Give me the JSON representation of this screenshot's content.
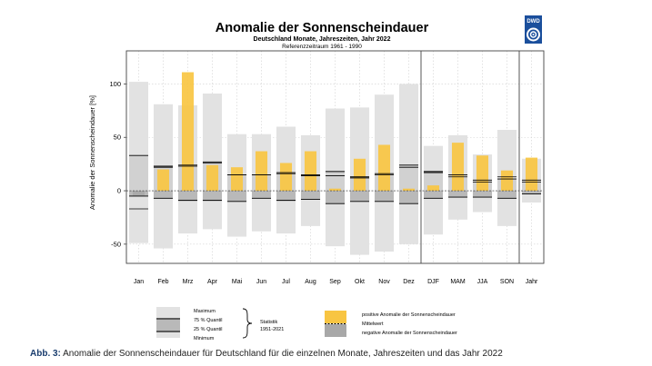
{
  "logo": {
    "text": "DWD"
  },
  "legend": {
    "maximum": "Maximum",
    "q75": "75 % Quantil",
    "q25": "25 % Quantil",
    "minimum": "Minimum",
    "statistik": "Statistik",
    "statistik_period": "1951-2021",
    "positive": "positive Anomalie der Sonnenscheindauer",
    "mittelwert": "Mittelwert",
    "negative": "negative Anomalie der Sonnenscheindauer"
  },
  "caption": {
    "label": "Abb. 3:",
    "text": "Anomalie der Sonnenscheindauer für Deutschland für die einzelnen Monate, Jahreszeiten und das Jahr 2022"
  },
  "colors": {
    "range": "#e2e2e2",
    "quartile_neg": "#b9b9b9",
    "quartile_pos": "#d1d1d1",
    "positive": "#f8c542",
    "negative": "#a8a8a8",
    "grid": "#d0d0d0",
    "caption_label": "#1a3d6e",
    "logo": "#1b4f9c"
  },
  "chart_data": {
    "type": "bar",
    "title": "Anomalie der Sonnenscheindauer",
    "subtitle": "Deutschland Monate, Jahreszeiten, Jahr 2022",
    "subtitle2": "Referenzzeitraum 1961 - 1990",
    "ylabel": "Anomalie der Sonnenscheindauer [%]",
    "xlabel": "",
    "ylim": [
      -68,
      131
    ],
    "yticks": [
      -50,
      0,
      50,
      100
    ],
    "categories": [
      "Jan",
      "Feb",
      "Mrz",
      "Apr",
      "Mai",
      "Jun",
      "Jul",
      "Aug",
      "Sep",
      "Okt",
      "Nov",
      "Dez",
      "DJF",
      "MAM",
      "JJA",
      "SON",
      "Jahr"
    ],
    "separators_after": [
      "Dez",
      "SON"
    ],
    "series": [
      {
        "name": "Maximum",
        "values": [
          102,
          81,
          80,
          91,
          53,
          53,
          60,
          52,
          77,
          78,
          90,
          100,
          42,
          52,
          34,
          57,
          30
        ]
      },
      {
        "name": "75 % Quantil",
        "values": [
          33,
          23,
          24,
          27,
          15,
          15,
          17,
          15,
          18,
          13,
          16,
          24,
          18,
          15,
          10,
          11,
          10
        ]
      },
      {
        "name": "25 % Quantil",
        "values": [
          -5,
          -7,
          -9,
          -9,
          -10,
          -7,
          -9,
          -8,
          -12,
          -10,
          -10,
          -12,
          -7,
          -6,
          -6,
          -7,
          -3
        ]
      },
      {
        "name": "Minimum",
        "values": [
          -49,
          -54,
          -40,
          -36,
          -43,
          -38,
          -40,
          -33,
          -52,
          -60,
          -57,
          -50,
          -41,
          -27,
          -20,
          -33,
          -11
        ]
      },
      {
        "name": "Anomalie 2022",
        "values": [
          -5,
          20,
          111,
          24,
          22,
          37,
          26,
          37,
          2,
          30,
          43,
          2,
          5,
          45,
          33,
          19,
          31
        ]
      },
      {
        "name": "Mittelwert",
        "values": [
          -17,
          22,
          23,
          26,
          15,
          15,
          16,
          14,
          14,
          12,
          15,
          22,
          17,
          13,
          8,
          13,
          8
        ]
      }
    ]
  }
}
